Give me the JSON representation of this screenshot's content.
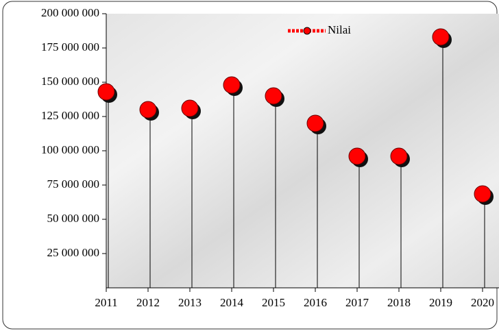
{
  "chart_data": {
    "type": "lollipop",
    "categories": [
      "2011",
      "2012",
      "2013",
      "2014",
      "2015",
      "2016",
      "2017",
      "2018",
      "2019",
      "2020"
    ],
    "series": [
      {
        "name": "Nilai",
        "color": "#ff0000",
        "values": [
          143000000,
          130000000,
          131000000,
          148000000,
          140000000,
          120000000,
          96000000,
          96000000,
          183000000,
          68500000
        ]
      }
    ],
    "ylim": [
      0,
      200000000
    ],
    "yticks": [
      {
        "value": 25000000,
        "label": "25 000 000"
      },
      {
        "value": 50000000,
        "label": "50 000 000"
      },
      {
        "value": 75000000,
        "label": "75 000 000"
      },
      {
        "value": 100000000,
        "label": "100 000 000"
      },
      {
        "value": 125000000,
        "label": "125 000 000"
      },
      {
        "value": 150000000,
        "label": "150 000 000"
      },
      {
        "value": 175000000,
        "label": "175 000 000"
      },
      {
        "value": 200000000,
        "label": "200 000 000"
      }
    ],
    "legend": "top"
  }
}
